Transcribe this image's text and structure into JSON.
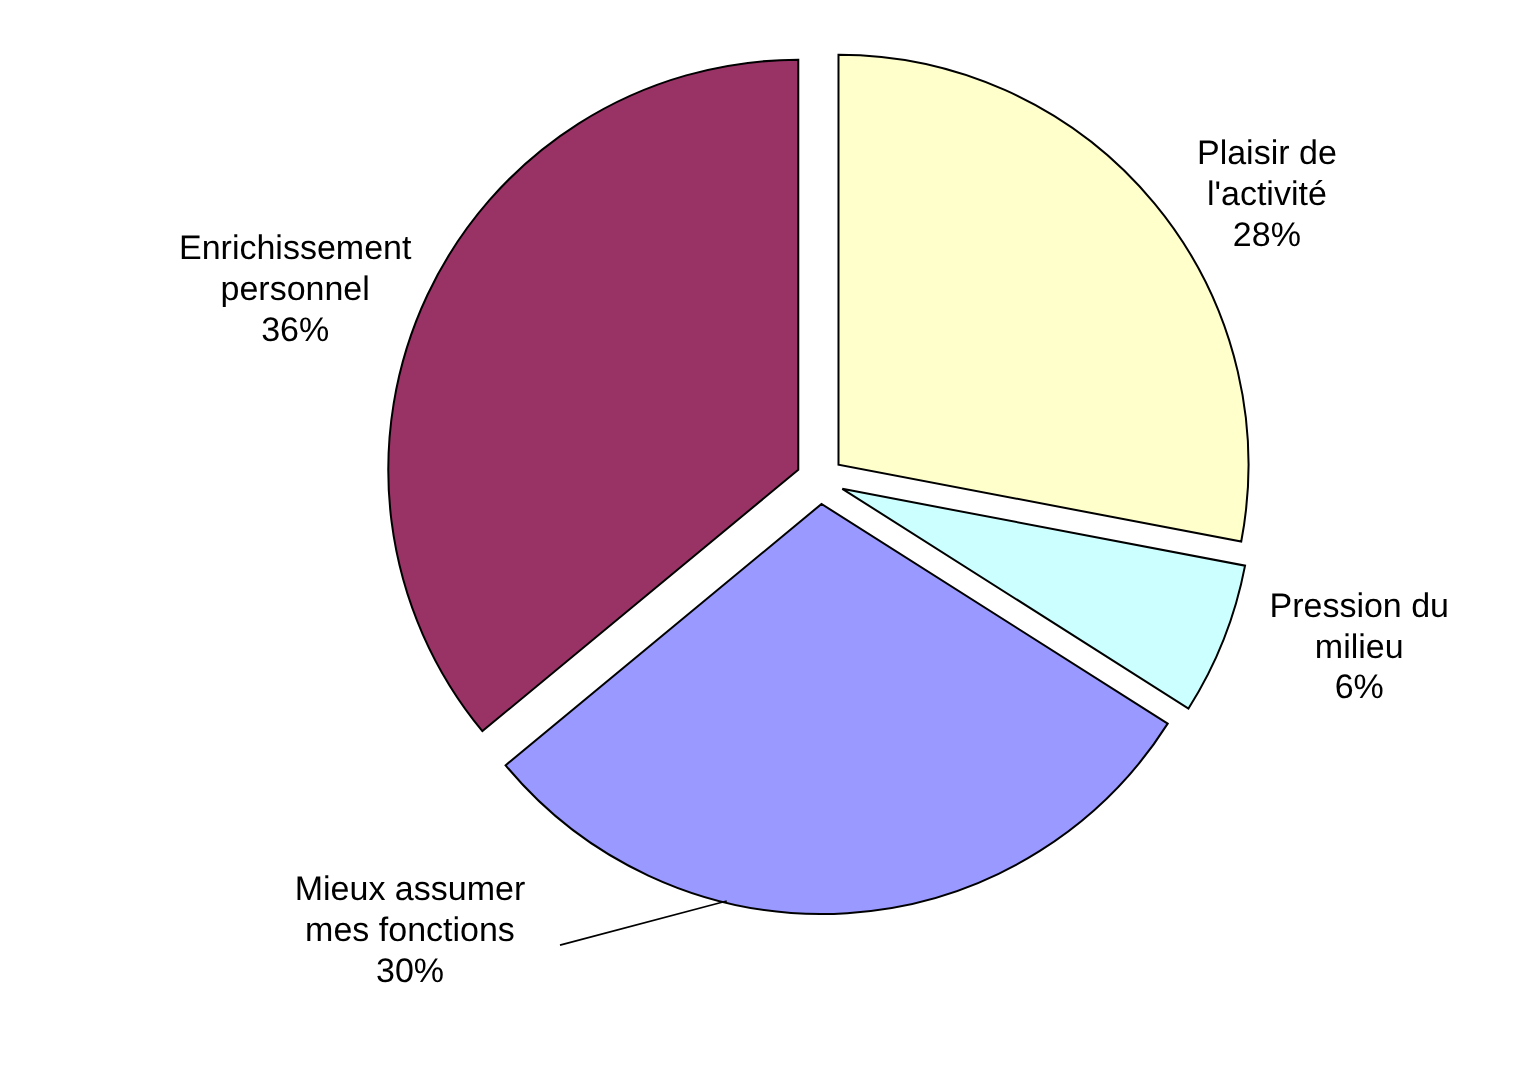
{
  "chart_data": {
    "type": "pie",
    "categories": [
      "Plaisir de l'activité",
      "Pression du milieu",
      "Mieux assumer mes fonctions",
      "Enrichissement personnel"
    ],
    "values": [
      28,
      6,
      30,
      36
    ],
    "value_labels": [
      "28%",
      "6%",
      "30%",
      "36%"
    ],
    "colors": [
      "#ffffcc",
      "#ccffff",
      "#9999ff",
      "#993366"
    ]
  }
}
